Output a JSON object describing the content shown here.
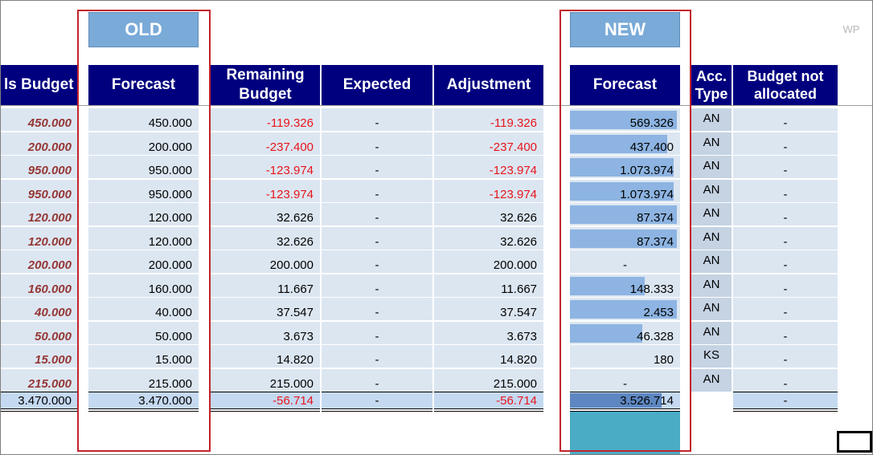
{
  "labels": {
    "old": "OLD",
    "new": "NEW",
    "wp": "WP"
  },
  "headers": {
    "budget": "ls Budget",
    "forecast_old": "Forecast",
    "remaining_line1": "Remaining",
    "remaining_line2": "Budget",
    "expected": "Expected",
    "adjustment": "Adjustment",
    "forecast_new": "Forecast",
    "acc_line1": "Acc.",
    "acc_line2": "Type",
    "bna_line1": "Budget not",
    "bna_line2": "allocated"
  },
  "rows": [
    {
      "budget": "450.000",
      "forecast_old": "450.000",
      "remaining": "-119.326",
      "expected": "-",
      "adjustment": "-119.326",
      "forecast_new": "569.326",
      "new_fill": 0.97,
      "acc": "AN",
      "bna": "-"
    },
    {
      "budget": "200.000",
      "forecast_old": "200.000",
      "remaining": "-237.400",
      "expected": "-",
      "adjustment": "-237.400",
      "forecast_new": "437.400",
      "new_fill": 0.88,
      "acc": "AN",
      "bna": "-"
    },
    {
      "budget": "950.000",
      "forecast_old": "950.000",
      "remaining": "-123.974",
      "expected": "-",
      "adjustment": "-123.974",
      "forecast_new": "1.073.974",
      "new_fill": 0.94,
      "acc": "AN",
      "bna": "-"
    },
    {
      "budget": "950.000",
      "forecast_old": "950.000",
      "remaining": "-123.974",
      "expected": "-",
      "adjustment": "-123.974",
      "forecast_new": "1.073.974",
      "new_fill": 0.94,
      "acc": "AN",
      "bna": "-"
    },
    {
      "budget": "120.000",
      "forecast_old": "120.000",
      "remaining": "32.626",
      "expected": "-",
      "adjustment": "32.626",
      "forecast_new": "87.374",
      "new_fill": 0.97,
      "acc": "AN",
      "bna": "-"
    },
    {
      "budget": "120.000",
      "forecast_old": "120.000",
      "remaining": "32.626",
      "expected": "-",
      "adjustment": "32.626",
      "forecast_new": "87.374",
      "new_fill": 0.97,
      "acc": "AN",
      "bna": "-"
    },
    {
      "budget": "200.000",
      "forecast_old": "200.000",
      "remaining": "200.000",
      "expected": "-",
      "adjustment": "200.000",
      "forecast_new": "-",
      "new_fill": 0,
      "acc": "AN",
      "bna": "-"
    },
    {
      "budget": "160.000",
      "forecast_old": "160.000",
      "remaining": "11.667",
      "expected": "-",
      "adjustment": "11.667",
      "forecast_new": "148.333",
      "new_fill": 0.68,
      "acc": "AN",
      "bna": "-"
    },
    {
      "budget": "40.000",
      "forecast_old": "40.000",
      "remaining": "37.547",
      "expected": "-",
      "adjustment": "37.547",
      "forecast_new": "2.453",
      "new_fill": 0.97,
      "acc": "AN",
      "bna": "-"
    },
    {
      "budget": "50.000",
      "forecast_old": "50.000",
      "remaining": "3.673",
      "expected": "-",
      "adjustment": "3.673",
      "forecast_new": "46.328",
      "new_fill": 0.66,
      "acc": "AN",
      "bna": "-"
    },
    {
      "budget": "15.000",
      "forecast_old": "15.000",
      "remaining": "14.820",
      "expected": "-",
      "adjustment": "14.820",
      "forecast_new": "180",
      "new_fill": 0,
      "acc": "KS",
      "bna": "-"
    },
    {
      "budget": "215.000",
      "forecast_old": "215.000",
      "remaining": "215.000",
      "expected": "-",
      "adjustment": "215.000",
      "forecast_new": "-",
      "new_fill": 0,
      "acc": "AN",
      "bna": "-"
    }
  ],
  "totals": {
    "budget": "3.470.000",
    "forecast_old": "3.470.000",
    "remaining": "-56.714",
    "expected": "-",
    "adjustment": "-56.714",
    "forecast_new": "3.526.714",
    "new_fill": 0.83,
    "bna": "-"
  },
  "colors": {
    "header_bg": "#00007f",
    "cell_bg": "#dce6f1",
    "negative": "#e8141c",
    "budget_text": "#953735",
    "databar": "#8db4e2",
    "highlight_box": "#c0242c",
    "tag_bg": "#7aaad8",
    "teal_fill": "#4bacc6"
  }
}
